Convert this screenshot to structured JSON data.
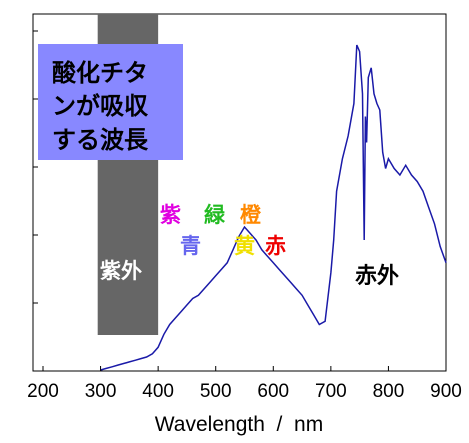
{
  "chart_data": {
    "type": "line",
    "title": "",
    "xlabel": "Wavelength  /  nm",
    "ylabel": "",
    "xlim": [
      200,
      900
    ],
    "ylim": [
      0,
      1.0
    ],
    "xticks": [
      "200",
      "300",
      "400",
      "500",
      "600",
      "700",
      "800",
      "900"
    ],
    "y_tick_count": 5,
    "grid": false,
    "series": [
      {
        "color": "#1a1aa8",
        "x": [
          300,
          310,
          320,
          330,
          340,
          350,
          360,
          370,
          380,
          390,
          395,
          400,
          405,
          410,
          420,
          430,
          440,
          450,
          460,
          470,
          480,
          490,
          500,
          510,
          520,
          530,
          540,
          550,
          560,
          570,
          580,
          590,
          600,
          610,
          620,
          630,
          640,
          650,
          660,
          670,
          680,
          690,
          700,
          705,
          710,
          720,
          730,
          740,
          745,
          750,
          755,
          758,
          760,
          762,
          765,
          770,
          775,
          780,
          785,
          790,
          795,
          800,
          810,
          820,
          830,
          840,
          850,
          860,
          870,
          880,
          890,
          900
        ],
        "y": [
          0.0,
          0.005,
          0.01,
          0.015,
          0.02,
          0.025,
          0.03,
          0.035,
          0.04,
          0.05,
          0.06,
          0.07,
          0.09,
          0.11,
          0.14,
          0.16,
          0.18,
          0.2,
          0.22,
          0.23,
          0.25,
          0.27,
          0.29,
          0.31,
          0.33,
          0.37,
          0.41,
          0.44,
          0.42,
          0.4,
          0.37,
          0.35,
          0.33,
          0.31,
          0.29,
          0.27,
          0.25,
          0.23,
          0.2,
          0.17,
          0.14,
          0.15,
          0.3,
          0.4,
          0.55,
          0.65,
          0.72,
          0.82,
          1.0,
          0.98,
          0.85,
          0.4,
          0.78,
          0.7,
          0.9,
          0.93,
          0.85,
          0.82,
          0.8,
          0.67,
          0.62,
          0.65,
          0.62,
          0.6,
          0.63,
          0.6,
          0.58,
          0.55,
          0.5,
          0.45,
          0.38,
          0.33
        ]
      }
    ],
    "bands": [
      {
        "x_start": 295,
        "x_end": 400,
        "color": "#666666",
        "label": "紫外"
      }
    ],
    "annotations": [
      {
        "text": "紫",
        "color": "#e000e0"
      },
      {
        "text": "青",
        "color": "#6666ee"
      },
      {
        "text": "緑",
        "color": "#22bb22"
      },
      {
        "text": "黄",
        "color": "#f0e000"
      },
      {
        "text": "橙",
        "color": "#ff8800"
      },
      {
        "text": "赤",
        "color": "#ee0000"
      },
      {
        "text": "赤外",
        "color": "#000000"
      }
    ],
    "callout": {
      "lines": [
        "酸化チタ",
        "ンが吸収",
        "する波長"
      ],
      "background": "#8888ff"
    }
  }
}
